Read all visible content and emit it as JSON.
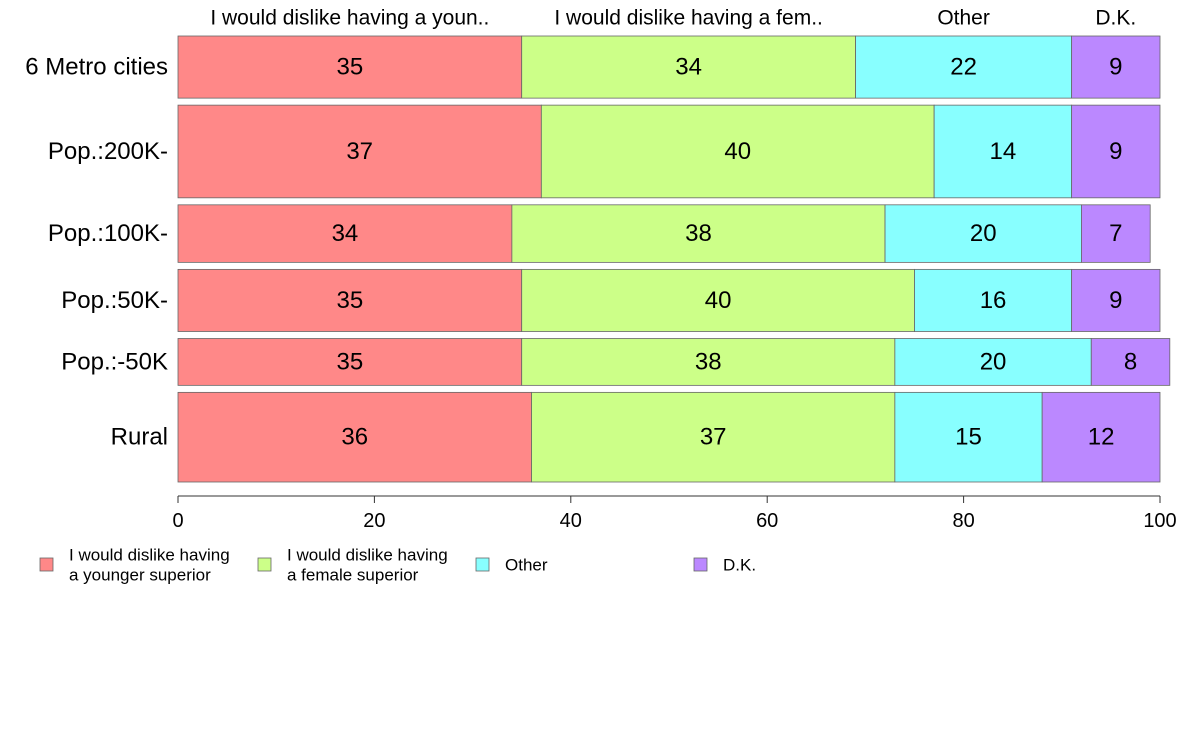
{
  "chart_data": {
    "type": "bar",
    "orientation": "horizontal",
    "stacked": true,
    "categories": [
      "6 Metro cities",
      "Pop.:200K-",
      "Pop.:100K-",
      "Pop.:50K-",
      "Pop.:-50K",
      "Rural"
    ],
    "category_weights": [
      1.22,
      1.82,
      1.13,
      1.22,
      0.92,
      1.76
    ],
    "series": [
      {
        "name": "I would dislike having a younger superior",
        "header": "I would dislike having a youn..",
        "legend_lines": [
          "I would dislike having",
          "a younger superior"
        ],
        "color": "#ff8888",
        "values": [
          35,
          37,
          34,
          35,
          35,
          36
        ]
      },
      {
        "name": "I would dislike having a female superior",
        "header": "I would dislike having a fem..",
        "legend_lines": [
          "I would dislike having",
          "a female superior"
        ],
        "color": "#ccff88",
        "values": [
          34,
          40,
          38,
          40,
          38,
          37
        ]
      },
      {
        "name": "Other",
        "header": "Other",
        "legend_lines": [
          "Other"
        ],
        "color": "#88ffff",
        "values": [
          22,
          14,
          20,
          16,
          20,
          15
        ]
      },
      {
        "name": "D.K.",
        "header": "D.K.",
        "legend_lines": [
          "D.K."
        ],
        "color": "#bb88ff",
        "values": [
          9,
          9,
          7,
          9,
          8,
          12
        ]
      }
    ],
    "xlim": [
      0,
      100
    ],
    "xticks": [
      0,
      20,
      40,
      60,
      80,
      100
    ],
    "grid": false,
    "legend_position": "bottom-left",
    "xlabel": "",
    "ylabel": ""
  }
}
